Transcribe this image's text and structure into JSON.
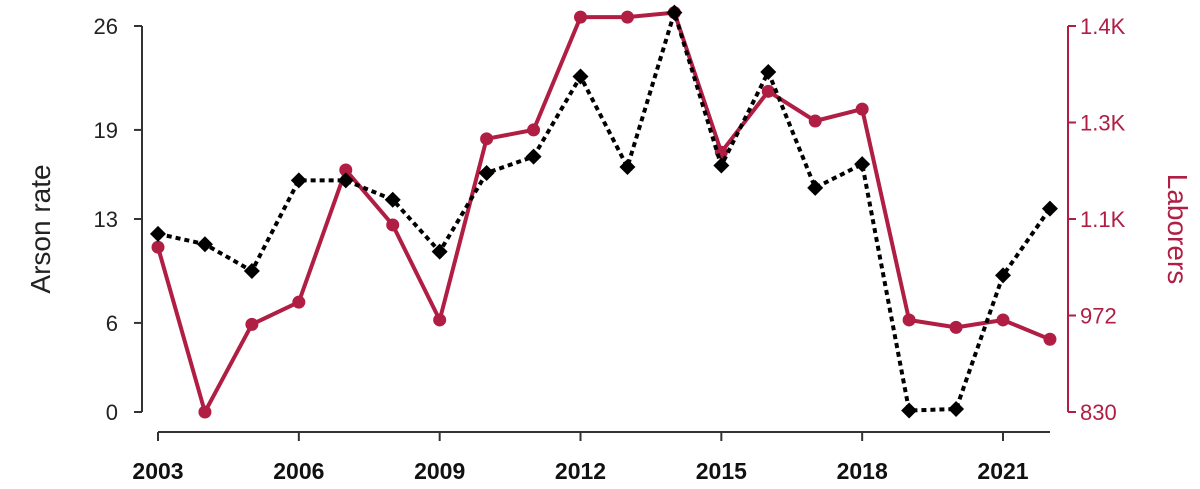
{
  "chart_data": {
    "type": "line",
    "x": [
      2003,
      2004,
      2005,
      2006,
      2007,
      2008,
      2009,
      2010,
      2011,
      2012,
      2013,
      2014,
      2015,
      2016,
      2017,
      2018,
      2019,
      2020,
      2021,
      2022
    ],
    "x_ticks": [
      2003,
      2006,
      2009,
      2012,
      2015,
      2018,
      2021
    ],
    "x_tick_labels": [
      "2003",
      "2006",
      "2009",
      "2012",
      "2015",
      "2018",
      "2021"
    ],
    "xlim": [
      2003,
      2022
    ],
    "ylabel": "Arson rate",
    "ylabel_right": "Laborers",
    "y_ticks": [
      0,
      6,
      13,
      19,
      26
    ],
    "y_tick_labels": [
      "0",
      "6",
      "13",
      "19",
      "26"
    ],
    "ylim": [
      0,
      26
    ],
    "y2_ticks": [
      830,
      972,
      1100,
      1300,
      1400
    ],
    "y2_tick_labels": [
      "830",
      "972",
      "1.1K",
      "1.3K",
      "1.4K"
    ],
    "y2_tick_positions": [
      0,
      6.5,
      13,
      19.5,
      26
    ],
    "series": [
      {
        "axis": "left",
        "color": "#000000",
        "style": "dashed",
        "marker": "diamond",
        "values": [
          12.0,
          11.3,
          9.5,
          15.6,
          15.6,
          14.3,
          10.8,
          16.1,
          17.2,
          22.6,
          16.5,
          26.9,
          16.6,
          22.9,
          15.1,
          16.7,
          0.1,
          0.2,
          9.2,
          13.7
        ]
      },
      {
        "axis": "right",
        "color": "#b01e44",
        "style": "solid",
        "marker": "circle",
        "values": [
          1090,
          830,
          960,
          995,
          1150,
          1080,
          970,
          1210,
          1215,
          1395,
          1395,
          1400,
          1185,
          1240,
          1220,
          1230,
          970,
          965,
          970,
          950
        ],
        "plot_values": [
          11.1,
          0,
          5.9,
          7.4,
          16.3,
          12.6,
          6.2,
          18.4,
          19.0,
          26.6,
          26.6,
          26.9,
          17.5,
          21.6,
          19.6,
          20.4,
          6.2,
          5.7,
          6.2,
          4.9
        ]
      }
    ]
  }
}
